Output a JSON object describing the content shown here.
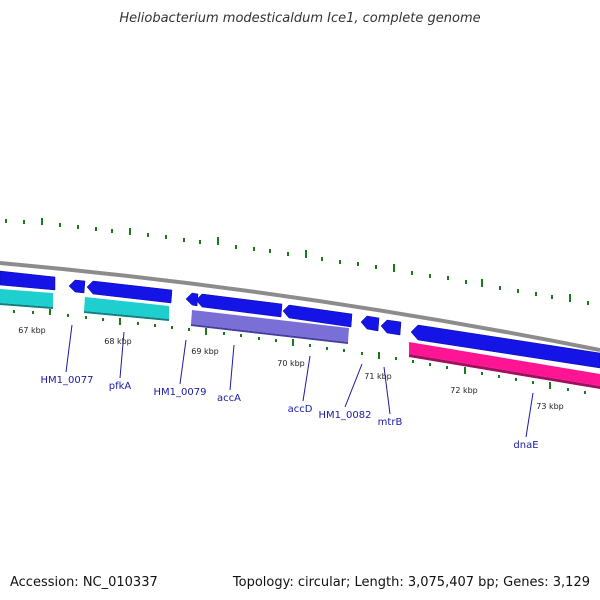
{
  "title": "Heliobacterium modesticaldum Ice1, complete genome",
  "footer": {
    "accession": "Accession: NC_010337",
    "topology": "Topology: circular; Length: 3,075,407 bp; Genes: 3,129"
  },
  "kbp_labels": [
    "67 kbp",
    "68 kbp",
    "69 kbp",
    "70 kbp",
    "71 kbp",
    "72 kbp",
    "73 kbp"
  ],
  "gene_labels": [
    "HM1_0077",
    "pfkA",
    "HM1_0079",
    "accA",
    "accD",
    "HM1_0082",
    "mtrB",
    "dnaE"
  ],
  "colors": {
    "backbone": "#8c8c8c",
    "gene_blue": "#1414e6",
    "cyan": "#1fcfcf",
    "purple": "#7a6fd6",
    "magenta": "#ff1493",
    "tick": "#1a7a1a",
    "label": "#1a1aa6"
  }
}
